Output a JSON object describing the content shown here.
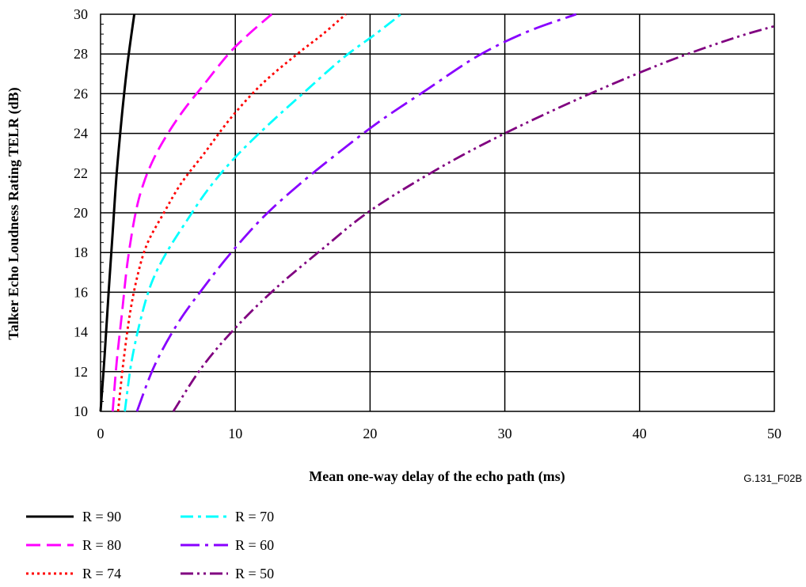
{
  "figure_id": "G.131_F02B",
  "chart_data": {
    "type": "line",
    "xlabel": "Mean one-way delay of the echo path (ms)",
    "ylabel": "Talker Echo Loudness Rating TELR (dB)",
    "xlim": [
      0,
      50
    ],
    "ylim": [
      10,
      30
    ],
    "x_ticks": [
      "0",
      "10",
      "20",
      "30",
      "40",
      "50"
    ],
    "y_ticks": [
      "10",
      "12",
      "14",
      "16",
      "18",
      "20",
      "22",
      "24",
      "26",
      "28",
      "30"
    ],
    "grid": true,
    "legend_position": "bottom-left",
    "series": [
      {
        "name": "R = 90",
        "color": "#000000",
        "dash": "solid",
        "x": [
          0.0,
          0.3,
          0.6,
          0.9,
          1.2,
          1.6,
          2.0,
          2.5
        ],
        "y": [
          10,
          12.8,
          16,
          19,
          22,
          25,
          27.5,
          30
        ]
      },
      {
        "name": "R = 80",
        "color": "#ff00ff",
        "dash": "dash",
        "x": [
          0.9,
          1.2,
          1.6,
          2.0,
          2.6,
          3.2,
          4.0,
          5.0,
          6.2,
          7.6,
          9.5,
          11.0,
          12.7
        ],
        "y": [
          10,
          12.5,
          15,
          17.5,
          20,
          21.5,
          22.8,
          24,
          25.2,
          26.4,
          28,
          29,
          30
        ]
      },
      {
        "name": "R = 74",
        "color": "#ff0000",
        "dash": "dot",
        "x": [
          1.3,
          1.7,
          2.2,
          2.8,
          3.5,
          4.7,
          6.0,
          7.7,
          9.7,
          12.0,
          14.6,
          16.5,
          18.2
        ],
        "y": [
          10,
          12.5,
          15,
          17,
          18.5,
          20,
          21.5,
          23,
          24.8,
          26.5,
          28,
          29,
          30
        ]
      },
      {
        "name": "R = 70",
        "color": "#00ffff",
        "dash": "dashdot",
        "x": [
          1.8,
          2.3,
          3.0,
          3.8,
          4.9,
          6.4,
          8.0,
          10.0,
          12.4,
          15.0,
          18.0,
          20.4,
          22.3
        ],
        "y": [
          10,
          12.5,
          14.7,
          16.5,
          18,
          19.6,
          21.2,
          22.8,
          24.4,
          26,
          27.8,
          29,
          30
        ]
      },
      {
        "name": "R = 60",
        "color": "#8800ff",
        "dash": "longdashdot",
        "x": [
          2.7,
          4.0,
          5.7,
          7.6,
          9.7,
          12.1,
          14.7,
          17.6,
          20.7,
          24.2,
          28.0,
          31.6,
          35.3
        ],
        "y": [
          10,
          12.3,
          14.4,
          16.2,
          18,
          19.8,
          21.4,
          23,
          24.6,
          26.2,
          27.9,
          29.1,
          30
        ]
      },
      {
        "name": "R = 50",
        "color": "#800080",
        "dash": "dashdotdot",
        "x": [
          5.4,
          7.5,
          10.0,
          13.0,
          16.5,
          20.0,
          25.0,
          30.0,
          36.0,
          42.0,
          47.0,
          50.0
        ],
        "y": [
          10,
          12.2,
          14.2,
          16.2,
          18.2,
          20.1,
          22.2,
          24.0,
          25.9,
          27.6,
          28.8,
          29.4
        ]
      }
    ]
  }
}
